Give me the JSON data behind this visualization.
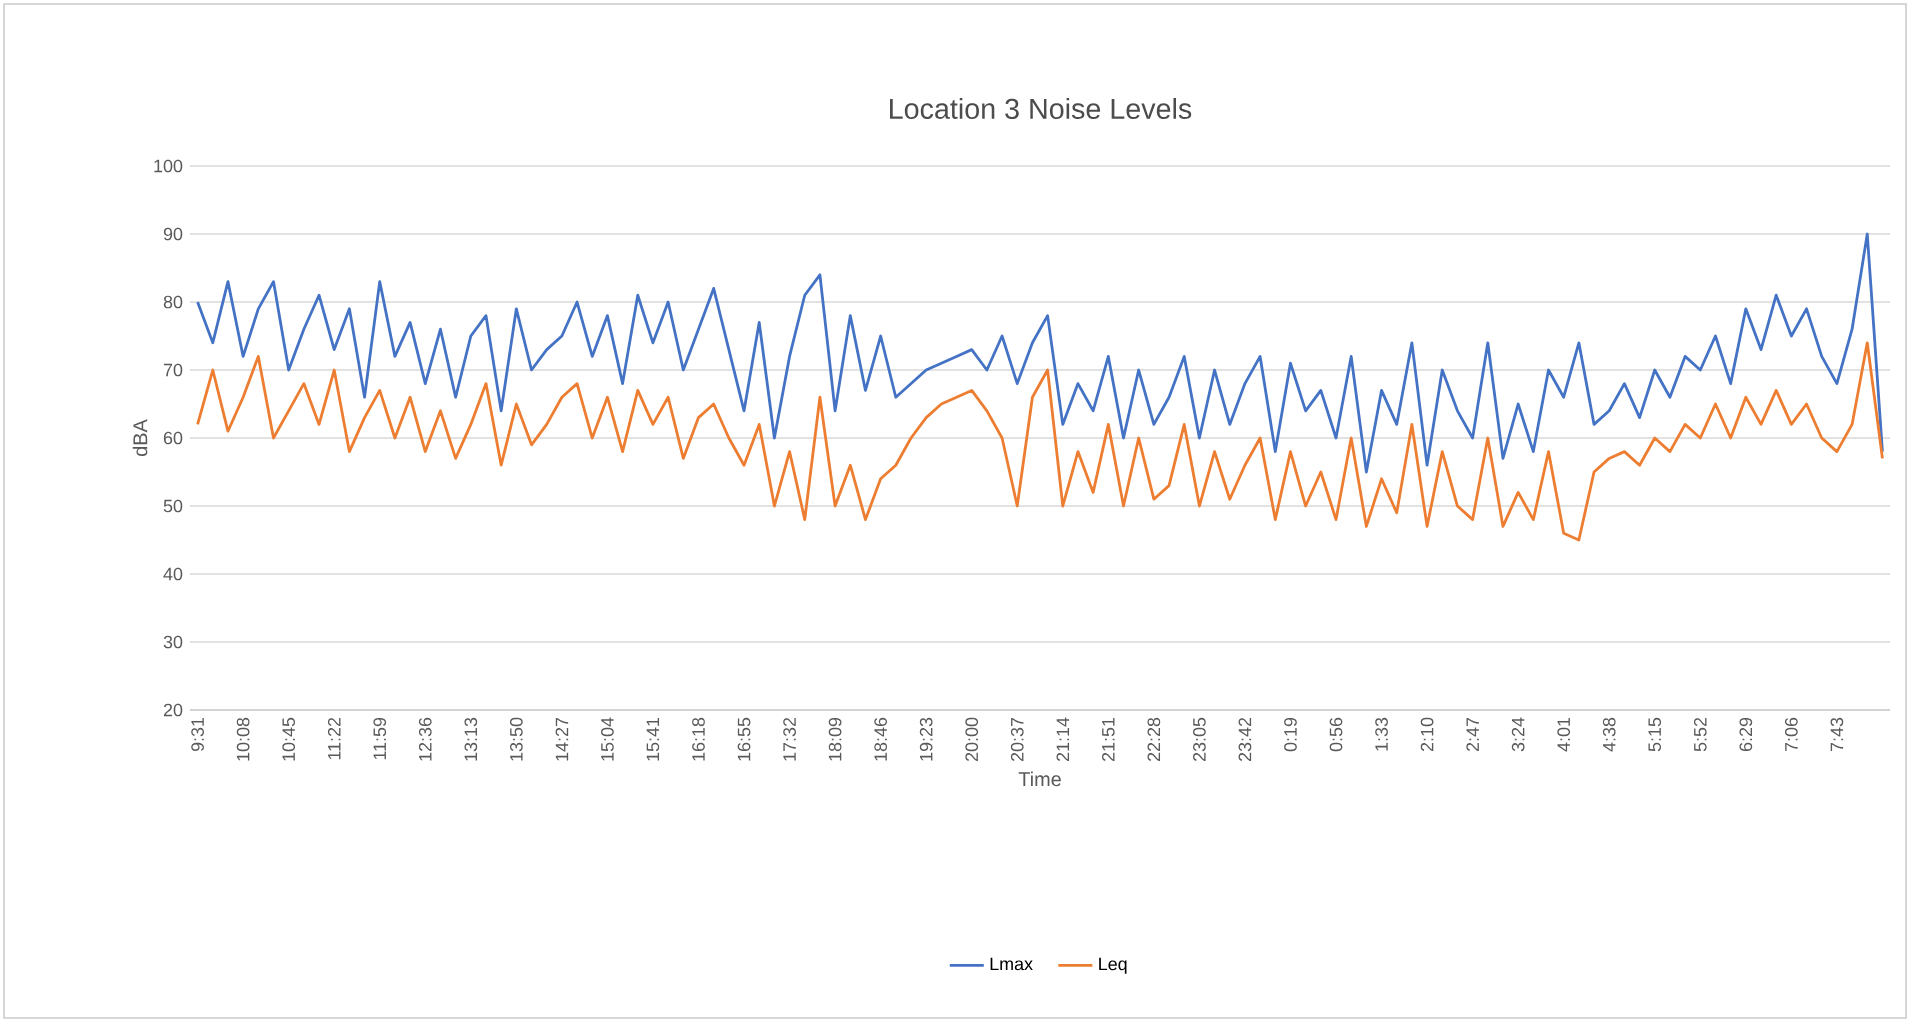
{
  "chart_data": {
    "type": "line",
    "title": "Location 3 Noise Levels",
    "xlabel": "Time",
    "ylabel": "dBA",
    "categories": [
      "9:31",
      null,
      null,
      "10:08",
      null,
      null,
      "10:45",
      null,
      null,
      "11:22",
      null,
      null,
      "11:59",
      null,
      null,
      "12:36",
      null,
      null,
      "13:13",
      null,
      null,
      "13:50",
      null,
      null,
      "14:27",
      null,
      null,
      "15:04",
      null,
      null,
      "15:41",
      null,
      null,
      "16:18",
      null,
      null,
      "16:55",
      null,
      null,
      "17:32",
      null,
      null,
      "18:09",
      null,
      null,
      "18:46",
      null,
      null,
      "19:23",
      null,
      null,
      "20:00",
      null,
      null,
      "20:37",
      null,
      null,
      "21:14",
      null,
      null,
      "21:51",
      null,
      null,
      "22:28",
      null,
      null,
      "23:05",
      null,
      null,
      "23:42",
      null,
      null,
      "0:19",
      null,
      null,
      "0:56",
      null,
      null,
      "1:33",
      null,
      null,
      "2:10",
      null,
      null,
      "2:47",
      null,
      null,
      "3:24",
      null,
      null,
      "4:01",
      null,
      null,
      "4:38",
      null,
      null,
      "5:15",
      null,
      null,
      "5:52",
      null,
      null,
      "6:29",
      null,
      null,
      "7:06",
      null,
      null,
      "7:43",
      null,
      null,
      null
    ],
    "series": [
      {
        "name": "Lmax",
        "color": "#4472c4",
        "values": [
          80,
          74,
          83,
          72,
          79,
          83,
          70,
          76,
          81,
          73,
          79,
          66,
          83,
          72,
          77,
          68,
          76,
          66,
          75,
          78,
          64,
          79,
          70,
          73,
          75,
          80,
          72,
          78,
          68,
          81,
          74,
          80,
          70,
          76,
          82,
          73,
          64,
          77,
          60,
          72,
          81,
          84,
          64,
          78,
          67,
          75,
          66,
          68,
          70,
          71,
          72,
          73,
          70,
          75,
          68,
          74,
          78,
          62,
          68,
          64,
          72,
          60,
          70,
          62,
          66,
          72,
          60,
          70,
          62,
          68,
          72,
          58,
          71,
          64,
          67,
          60,
          72,
          55,
          67,
          62,
          74,
          56,
          70,
          64,
          60,
          74,
          57,
          65,
          58,
          70,
          66,
          74,
          62,
          64,
          68,
          63,
          70,
          66,
          72,
          70,
          75,
          68,
          79,
          73,
          81,
          75,
          79,
          72,
          68,
          76,
          90,
          58
        ]
      },
      {
        "name": "Leq",
        "color": "#ed7d31",
        "values": [
          62,
          70,
          61,
          66,
          72,
          60,
          64,
          68,
          62,
          70,
          58,
          63,
          67,
          60,
          66,
          58,
          64,
          57,
          62,
          68,
          56,
          65,
          59,
          62,
          66,
          68,
          60,
          66,
          58,
          67,
          62,
          66,
          57,
          63,
          65,
          60,
          56,
          62,
          50,
          58,
          48,
          66,
          50,
          56,
          48,
          54,
          56,
          60,
          63,
          65,
          66,
          67,
          64,
          60,
          50,
          66,
          70,
          50,
          58,
          52,
          62,
          50,
          60,
          51,
          53,
          62,
          50,
          58,
          51,
          56,
          60,
          48,
          58,
          50,
          55,
          48,
          60,
          47,
          54,
          49,
          62,
          47,
          58,
          50,
          48,
          60,
          47,
          52,
          48,
          58,
          46,
          45,
          55,
          57,
          58,
          56,
          60,
          58,
          62,
          60,
          65,
          60,
          66,
          62,
          67,
          62,
          65,
          60,
          58,
          62,
          74,
          57
        ]
      }
    ],
    "ylim": [
      20,
      100
    ],
    "yticks": [
      20,
      30,
      40,
      50,
      60,
      70,
      80,
      90,
      100
    ],
    "grid": "y",
    "legend": "bottom"
  }
}
